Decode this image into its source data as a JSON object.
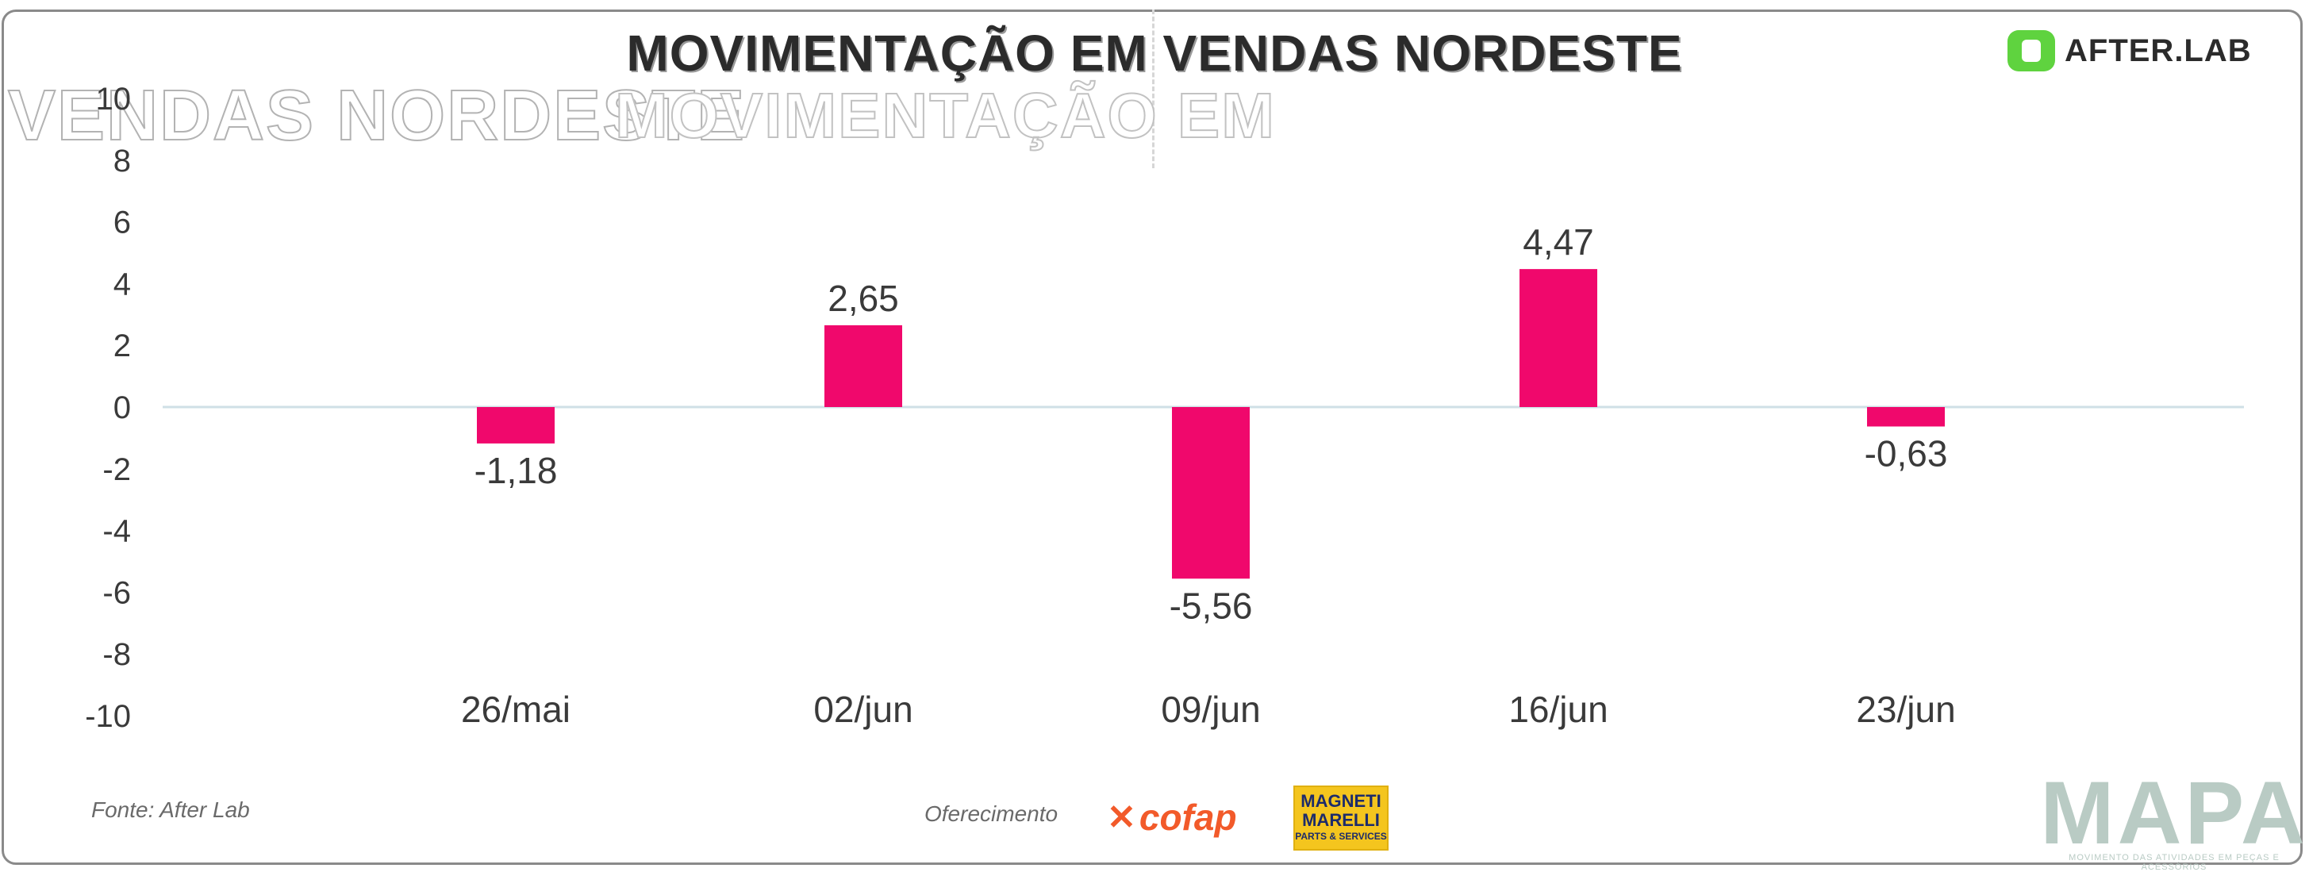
{
  "header": {
    "title": "MOVIMENTAÇÃO EM VENDAS NORDESTE",
    "ghost_left": "VENDAS NORDESTE",
    "ghost_center": "MOVIMENTAÇÃO EM",
    "logo_text": "AFTER.LAB"
  },
  "footer": {
    "source": "Fonte: After Lab",
    "sponsor_label": "Oferecimento",
    "sponsor1": "cofap",
    "sponsor2_line1": "MAGNETI",
    "sponsor2_line2": "MARELLI",
    "sponsor2_line3": "PARTS & SERVICES",
    "brand": "MAPA",
    "brand_tagline": "MOVIMENTO DAS ATIVIDADES EM PEÇAS E ACESSÓRIOS"
  },
  "colors": {
    "bar": "#f0086c",
    "axis_text": "#3a3a3a",
    "zero_line": "#cfe0e6",
    "brand_green": "#5fd33f"
  },
  "chart_data": {
    "type": "bar",
    "title": "MOVIMENTAÇÃO EM VENDAS NORDESTE",
    "categories": [
      "26/mai",
      "02/jun",
      "09/jun",
      "16/jun",
      "23/jun"
    ],
    "values": [
      -1.18,
      2.65,
      -5.56,
      4.47,
      -0.63
    ],
    "value_labels": [
      "-1,18",
      "2,65",
      "-5,56",
      "4,47",
      "-0,63"
    ],
    "ylim": [
      -10,
      10
    ],
    "yticks": [
      10,
      8,
      6,
      4,
      2,
      0,
      -2,
      -4,
      -6,
      -8,
      -10
    ],
    "xlabel": "",
    "ylabel": "",
    "grid": false,
    "legend": "none"
  }
}
